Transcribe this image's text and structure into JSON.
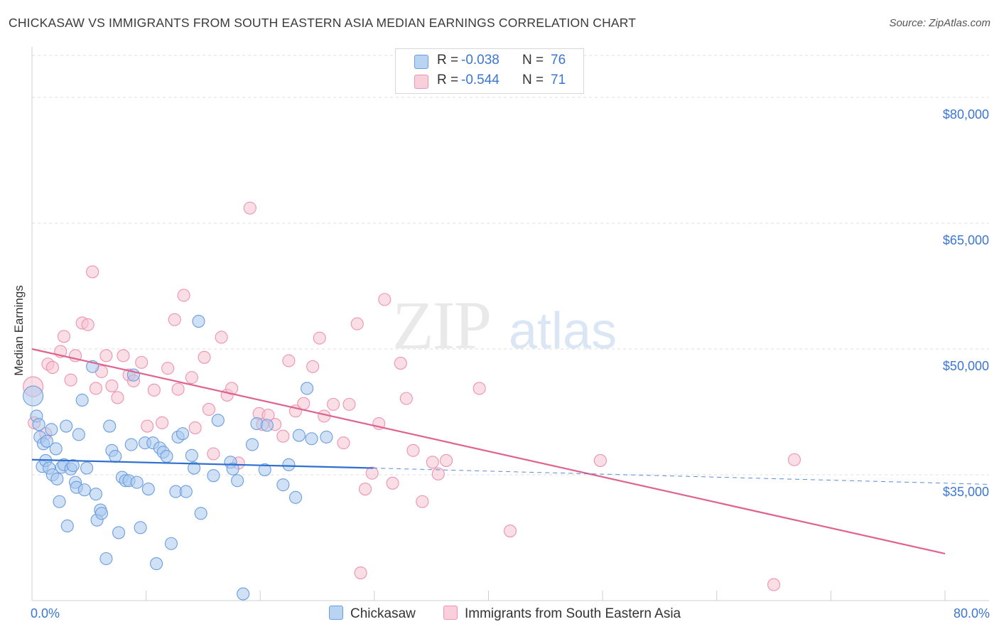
{
  "title": "CHICKASAW VS IMMIGRANTS FROM SOUTH EASTERN ASIA MEDIAN EARNINGS CORRELATION CHART",
  "source": "Source: ZipAtlas.com",
  "watermark": {
    "zip": "ZIP",
    "atlas": "atlas"
  },
  "colors": {
    "blue_fill": "#a9c8ef",
    "blue_stroke": "#6b9ee0",
    "blue_line": "#2f6fd0",
    "pink_fill": "#f6c2d2",
    "pink_stroke": "#ee93b1",
    "pink_line": "#e0628e",
    "axis_text": "#3b76d1",
    "grid": "#dedede"
  },
  "legend": {
    "rows": [
      {
        "r_label": "R =",
        "r_value": "-0.038",
        "n_label": "N =",
        "n_value": "76"
      },
      {
        "r_label": "R =",
        "r_value": "-0.544",
        "n_label": "N =",
        "n_value": "71"
      }
    ]
  },
  "bottom_legend": {
    "series1": "Chickasaw",
    "series2": "Immigrants from South Eastern Asia"
  },
  "chart_data": {
    "type": "scatter",
    "title": "CHICKASAW VS IMMIGRANTS FROM SOUTH EASTERN ASIA MEDIAN EARNINGS CORRELATION CHART",
    "xlabel": "",
    "ylabel": "Median Earnings",
    "xlim": [
      0,
      80
    ],
    "ylim": [
      20000,
      85000
    ],
    "x_tick_labels": [
      "0.0%",
      "80.0%"
    ],
    "y_ticks": [
      35000,
      50000,
      65000,
      80000
    ],
    "y_tick_labels": [
      "$35,000",
      "$50,000",
      "$65,000",
      "$80,000"
    ],
    "grid": true,
    "legend_position": "top-center",
    "series": [
      {
        "name": "Chickasaw",
        "color": "#6b9ee0",
        "r": -0.038,
        "n": 76,
        "trend": {
          "x": [
            0,
            29.9
          ],
          "y": [
            36800,
            35800
          ]
        },
        "trend_dashed": {
          "x": [
            29.9,
            80
          ],
          "y": [
            35800,
            34000
          ]
        },
        "points": [
          [
            0.1,
            44400
          ],
          [
            0.4,
            42000
          ],
          [
            0.6,
            41000
          ],
          [
            0.7,
            39500
          ],
          [
            0.9,
            36000
          ],
          [
            1.0,
            38700
          ],
          [
            1.2,
            36700
          ],
          [
            1.3,
            39000
          ],
          [
            1.5,
            35800
          ],
          [
            1.7,
            40400
          ],
          [
            1.8,
            35000
          ],
          [
            2.1,
            38100
          ],
          [
            2.2,
            34500
          ],
          [
            2.4,
            31800
          ],
          [
            2.6,
            35900
          ],
          [
            2.8,
            36200
          ],
          [
            3.0,
            40800
          ],
          [
            3.1,
            28900
          ],
          [
            3.4,
            35700
          ],
          [
            3.6,
            36100
          ],
          [
            3.8,
            34100
          ],
          [
            3.9,
            33500
          ],
          [
            4.1,
            39800
          ],
          [
            4.4,
            43900
          ],
          [
            4.6,
            33200
          ],
          [
            4.8,
            35800
          ],
          [
            5.3,
            47900
          ],
          [
            5.6,
            32700
          ],
          [
            5.7,
            29600
          ],
          [
            6.0,
            30800
          ],
          [
            6.1,
            30400
          ],
          [
            6.5,
            25000
          ],
          [
            6.8,
            40800
          ],
          [
            7.0,
            37900
          ],
          [
            7.3,
            37200
          ],
          [
            7.6,
            28100
          ],
          [
            7.9,
            34700
          ],
          [
            8.2,
            34300
          ],
          [
            8.5,
            34300
          ],
          [
            8.7,
            38600
          ],
          [
            8.9,
            46900
          ],
          [
            9.2,
            34100
          ],
          [
            9.5,
            28700
          ],
          [
            9.9,
            38800
          ],
          [
            10.2,
            33300
          ],
          [
            10.6,
            38800
          ],
          [
            10.9,
            24400
          ],
          [
            11.2,
            38200
          ],
          [
            11.5,
            37700
          ],
          [
            11.8,
            37200
          ],
          [
            12.2,
            26800
          ],
          [
            12.6,
            33000
          ],
          [
            12.8,
            39500
          ],
          [
            13.2,
            39900
          ],
          [
            14.0,
            37300
          ],
          [
            14.2,
            35800
          ],
          [
            14.6,
            53300
          ],
          [
            14.8,
            30400
          ],
          [
            15.9,
            34900
          ],
          [
            16.3,
            41500
          ],
          [
            17.4,
            36500
          ],
          [
            17.6,
            35700
          ],
          [
            18.0,
            34300
          ],
          [
            18.5,
            20800
          ],
          [
            19.7,
            41100
          ],
          [
            20.4,
            35600
          ],
          [
            20.6,
            40900
          ],
          [
            22.5,
            36200
          ],
          [
            23.1,
            32300
          ],
          [
            23.4,
            39700
          ],
          [
            24.1,
            45300
          ],
          [
            24.5,
            39300
          ],
          [
            25.8,
            39500
          ],
          [
            22.0,
            33800
          ],
          [
            19.3,
            38600
          ],
          [
            13.5,
            33000
          ]
        ]
      },
      {
        "name": "Immigrants from South Eastern Asia",
        "color": "#ee93b1",
        "r": -0.544,
        "n": 71,
        "trend": {
          "x": [
            0,
            80
          ],
          "y": [
            50000,
            25600
          ]
        },
        "points": [
          [
            0.1,
            45500
          ],
          [
            0.2,
            41200
          ],
          [
            1.2,
            39900
          ],
          [
            1.4,
            48200
          ],
          [
            1.8,
            47800
          ],
          [
            2.5,
            49700
          ],
          [
            2.8,
            51500
          ],
          [
            3.4,
            46300
          ],
          [
            3.8,
            49200
          ],
          [
            4.4,
            53100
          ],
          [
            4.9,
            52900
          ],
          [
            5.3,
            59200
          ],
          [
            5.6,
            45300
          ],
          [
            6.1,
            47300
          ],
          [
            6.5,
            49200
          ],
          [
            7.0,
            45600
          ],
          [
            7.5,
            44200
          ],
          [
            8.0,
            49200
          ],
          [
            8.5,
            46900
          ],
          [
            8.9,
            46200
          ],
          [
            9.6,
            48400
          ],
          [
            10.1,
            40800
          ],
          [
            10.7,
            45100
          ],
          [
            11.4,
            41200
          ],
          [
            11.9,
            47700
          ],
          [
            12.5,
            53500
          ],
          [
            12.8,
            45200
          ],
          [
            13.3,
            56400
          ],
          [
            14.0,
            46600
          ],
          [
            14.3,
            40600
          ],
          [
            15.1,
            49000
          ],
          [
            15.5,
            42800
          ],
          [
            15.9,
            37500
          ],
          [
            16.6,
            51400
          ],
          [
            17.1,
            44500
          ],
          [
            17.5,
            45300
          ],
          [
            18.1,
            36400
          ],
          [
            19.1,
            66800
          ],
          [
            19.9,
            42300
          ],
          [
            20.2,
            41000
          ],
          [
            20.7,
            42100
          ],
          [
            21.3,
            41000
          ],
          [
            22.0,
            39600
          ],
          [
            22.5,
            48600
          ],
          [
            23.1,
            42600
          ],
          [
            23.8,
            43500
          ],
          [
            24.6,
            47900
          ],
          [
            25.2,
            51300
          ],
          [
            25.6,
            42000
          ],
          [
            26.4,
            43400
          ],
          [
            27.3,
            38800
          ],
          [
            27.8,
            43400
          ],
          [
            28.5,
            53000
          ],
          [
            29.2,
            33300
          ],
          [
            29.8,
            35200
          ],
          [
            30.4,
            41100
          ],
          [
            30.9,
            55900
          ],
          [
            31.6,
            34000
          ],
          [
            32.3,
            48300
          ],
          [
            32.8,
            44100
          ],
          [
            33.4,
            37900
          ],
          [
            34.2,
            31800
          ],
          [
            35.1,
            36500
          ],
          [
            35.6,
            35100
          ],
          [
            36.3,
            36700
          ],
          [
            39.2,
            45300
          ],
          [
            28.8,
            23300
          ],
          [
            41.9,
            28300
          ],
          [
            49.8,
            36700
          ],
          [
            66.8,
            36800
          ],
          [
            65.0,
            21900
          ]
        ]
      }
    ]
  }
}
